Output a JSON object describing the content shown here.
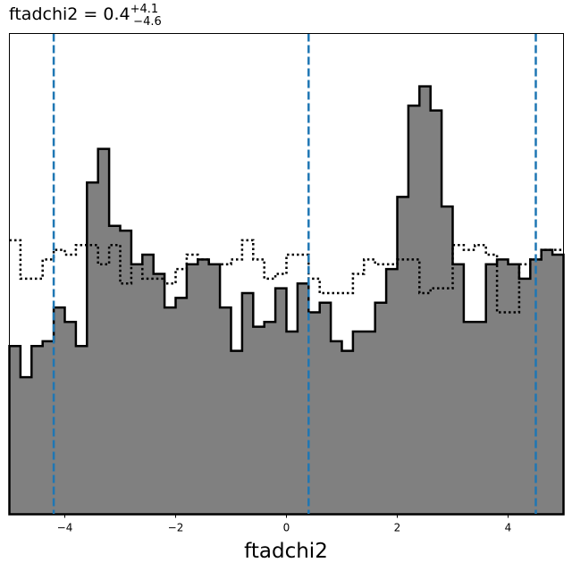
{
  "chart_data": {
    "type": "histogram",
    "title": {
      "prefix": "ftadchi2 = 0.4",
      "sup": "+4.1",
      "sub": "−4.6"
    },
    "xlabel": "ftadchi2",
    "ylabel": "",
    "xlim": [
      -5,
      5
    ],
    "ylim": [
      0,
      1.0
    ],
    "x_ticks": [
      -4,
      -2,
      0,
      2,
      4
    ],
    "x_tick_labels": [
      "−4",
      "−2",
      "0",
      "2",
      "4"
    ],
    "y_ticks_shown": false,
    "grid": false,
    "bin_edges_range": [
      -5,
      5
    ],
    "bin_count": 50,
    "series": [
      {
        "style": "filled-step",
        "fill_color": "#808080",
        "line_color": "#000000",
        "values": [
          0.35,
          0.285,
          0.35,
          0.36,
          0.43,
          0.4,
          0.35,
          0.69,
          0.76,
          0.6,
          0.59,
          0.52,
          0.54,
          0.5,
          0.43,
          0.45,
          0.52,
          0.53,
          0.52,
          0.43,
          0.34,
          0.46,
          0.39,
          0.4,
          0.47,
          0.38,
          0.48,
          0.42,
          0.44,
          0.36,
          0.34,
          0.38,
          0.38,
          0.44,
          0.51,
          0.66,
          0.85,
          0.89,
          0.84,
          0.64,
          0.52,
          0.4,
          0.4,
          0.52,
          0.53,
          0.52,
          0.49,
          0.53,
          0.55,
          0.54
        ]
      },
      {
        "style": "dotted-step",
        "line_color": "#000000",
        "values": [
          0.57,
          0.49,
          0.49,
          0.53,
          0.55,
          0.54,
          0.56,
          0.56,
          0.52,
          0.56,
          0.48,
          0.52,
          0.49,
          0.49,
          0.48,
          0.51,
          0.54,
          0.53,
          0.52,
          0.52,
          0.53,
          0.57,
          0.53,
          0.49,
          0.5,
          0.54,
          0.54,
          0.49,
          0.46,
          0.46,
          0.46,
          0.5,
          0.53,
          0.52,
          0.52,
          0.53,
          0.53,
          0.46,
          0.47,
          0.47,
          0.56,
          0.55,
          0.56,
          0.54,
          0.42,
          0.42,
          0.52,
          0.53,
          0.55,
          0.55
        ]
      }
    ],
    "vlines": {
      "values": [
        -4.2,
        0.4,
        4.5
      ],
      "color": "#1f77b4",
      "style": "dashed"
    }
  }
}
